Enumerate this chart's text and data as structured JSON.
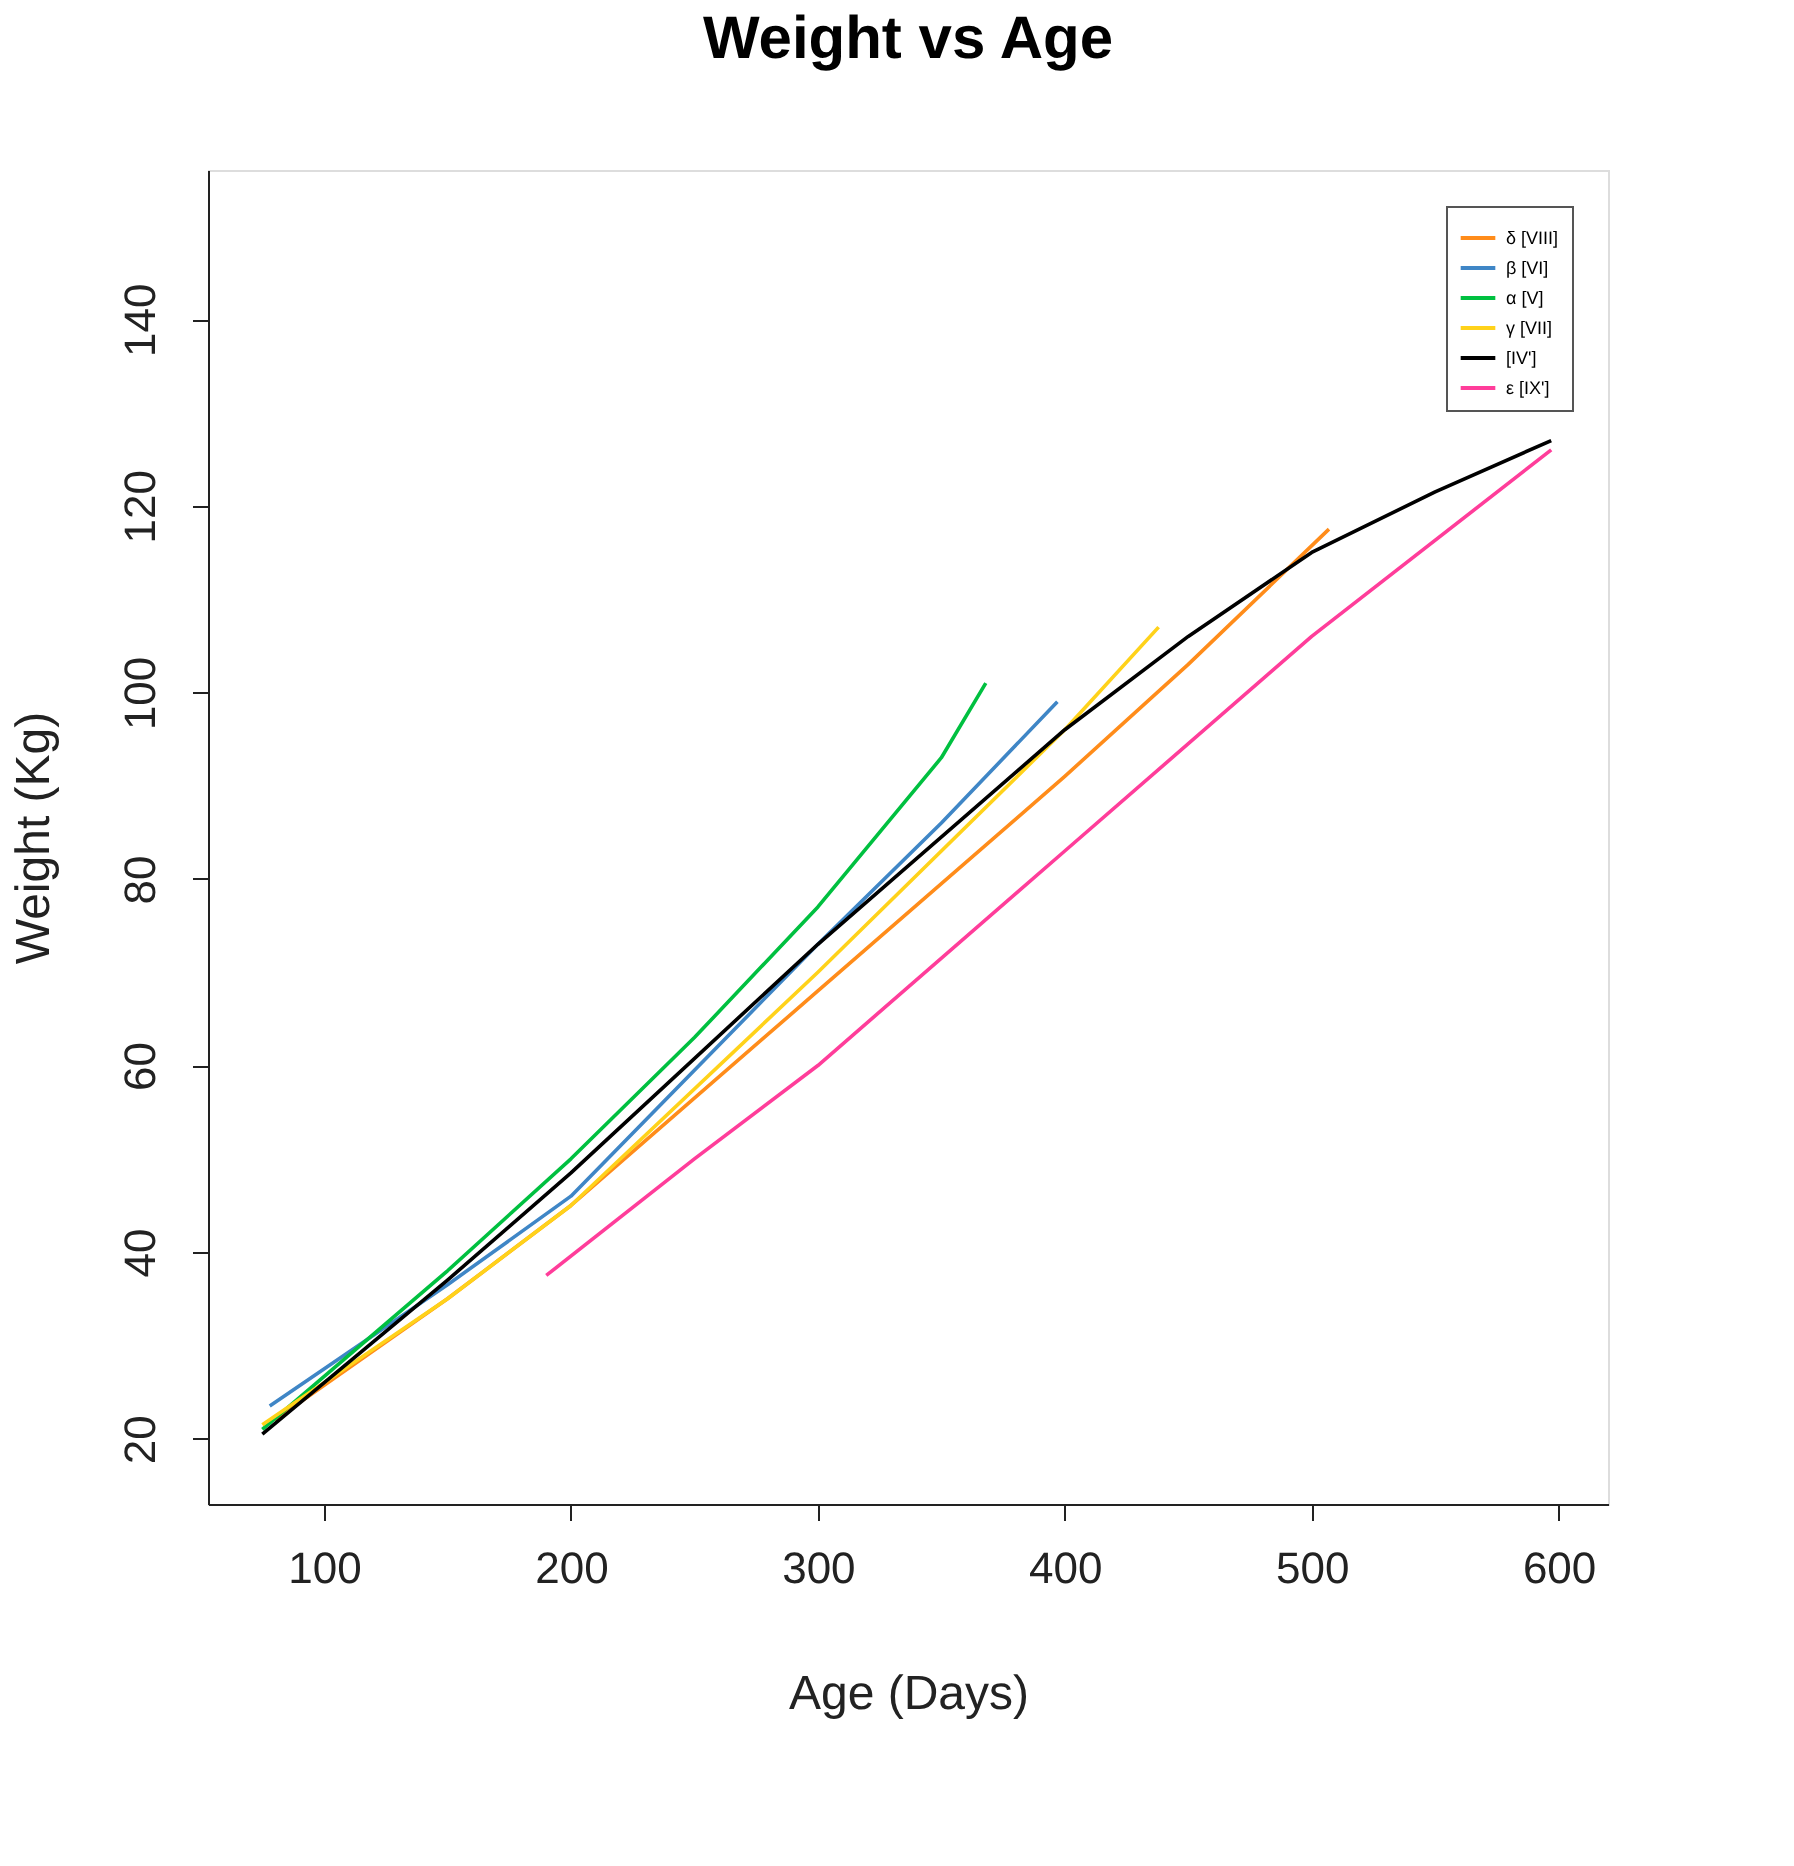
{
  "chart_data": {
    "type": "line",
    "title": "Weight vs Age",
    "xlabel": "Age (Days)",
    "ylabel": "Weight (Kg)",
    "xlim": [
      53,
      620
    ],
    "ylim": [
      13,
      156
    ],
    "xticks": [
      100,
      200,
      300,
      400,
      500,
      600
    ],
    "yticks": [
      20,
      40,
      60,
      80,
      100,
      120,
      140
    ],
    "grid": false,
    "legend": "top right",
    "marker": "none",
    "line_style": "solid",
    "series": [
      {
        "name": "δ [VIII]",
        "color": "#ff8c1a",
        "x": [
          80,
          150,
          200,
          300,
          400,
          450,
          507
        ],
        "values": [
          22,
          35,
          45,
          68,
          91,
          103,
          117.5
        ]
      },
      {
        "name": "β [VI]",
        "color": "#3f86c6",
        "x": [
          78,
          150,
          200,
          300,
          350,
          397
        ],
        "values": [
          23.5,
          36.5,
          46,
          73,
          86,
          99
        ]
      },
      {
        "name": "α [V]",
        "color": "#00c040",
        "x": [
          75,
          150,
          200,
          250,
          300,
          350,
          368
        ],
        "values": [
          21,
          38,
          50,
          63,
          77,
          93,
          101
        ]
      },
      {
        "name": "γ [VII]",
        "color": "#ffd21a",
        "x": [
          75,
          150,
          200,
          300,
          400,
          438
        ],
        "values": [
          21.5,
          35,
          45,
          70,
          96,
          107
        ]
      },
      {
        "name": "[IV']",
        "color": "#000000",
        "x": [
          75,
          150,
          200,
          300,
          400,
          450,
          500,
          550,
          597
        ],
        "values": [
          20.5,
          37,
          48.5,
          73,
          96,
          106,
          115,
          121.5,
          127
        ]
      },
      {
        "name": "ε [IX']",
        "color": "#ff3d9a",
        "x": [
          190,
          250,
          300,
          400,
          500,
          597
        ],
        "values": [
          37.5,
          50,
          60,
          83,
          106,
          126
        ]
      }
    ]
  }
}
